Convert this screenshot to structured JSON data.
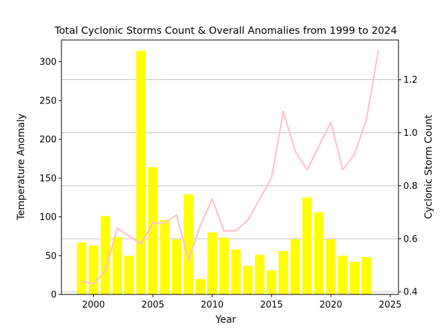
{
  "chart_data": {
    "type": "bar+line",
    "title": "Total Cyclonic Storms Count & Overall Anomalies from 1999 to 2024",
    "xlabel": "Year",
    "ylabel_left": "Temperature Anomaly",
    "ylabel_right": "Cyclonic Storm Count",
    "xlim": [
      1997.3,
      2025.7
    ],
    "ylim_left": [
      0,
      328
    ],
    "ylim_right": [
      0.39,
      1.35
    ],
    "x_ticks": [
      2000,
      2005,
      2010,
      2015,
      2020,
      2025
    ],
    "y_ticks_left": [
      0,
      50,
      100,
      150,
      200,
      250,
      300
    ],
    "y_ticks_right": [
      0.4,
      0.6,
      0.8,
      1.0,
      1.2
    ],
    "y_tick_labels_right": [
      "0.4",
      "0.6",
      "0.8",
      "1.0",
      "1.2"
    ],
    "grid": "horizontal at right-axis ticks",
    "bar_color": "#ffff00",
    "line_color": "#ffc0cb",
    "bars": {
      "x": [
        1999,
        2000,
        2001,
        2002,
        2003,
        2004,
        2005,
        2006,
        2007,
        2008,
        2009,
        2010,
        2011,
        2012,
        2013,
        2014,
        2015,
        2016,
        2017,
        2018,
        2019,
        2020,
        2021,
        2022,
        2023
      ],
      "values": [
        67,
        63,
        101,
        74,
        50,
        314,
        164,
        96,
        71,
        129,
        20,
        80,
        73,
        58,
        37,
        51,
        31,
        56,
        71,
        125,
        106,
        71,
        50,
        42,
        48
      ]
    },
    "line": {
      "x": [
        1999,
        2000,
        2001,
        2002,
        2003,
        2004,
        2005,
        2006,
        2007,
        2008,
        2009,
        2010,
        2011,
        2012,
        2013,
        2014,
        2015,
        2016,
        2017,
        2018,
        2019,
        2020,
        2021,
        2022,
        2023,
        2024
      ],
      "values": [
        0.44,
        0.43,
        0.48,
        0.64,
        0.61,
        0.58,
        0.66,
        0.66,
        0.69,
        0.52,
        0.65,
        0.75,
        0.63,
        0.63,
        0.67,
        0.75,
        0.83,
        1.08,
        0.93,
        0.86,
        0.95,
        1.04,
        0.86,
        0.92,
        1.05,
        1.31
      ]
    }
  }
}
